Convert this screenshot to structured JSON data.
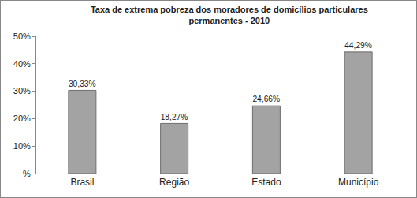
{
  "chart_data": {
    "type": "bar",
    "title": "Taxa de extrema pobreza dos moradores de domicílios particulares permanentes - 2010",
    "categories": [
      "Brasil",
      "Região",
      "Estado",
      "Município"
    ],
    "values": [
      30.33,
      18.27,
      24.66,
      44.29
    ],
    "value_labels": [
      "30,33%",
      "18,27%",
      "24,66%",
      "44,29%"
    ],
    "data_labels": true,
    "color": "#a3a3a3",
    "ylim": [
      0,
      50
    ],
    "yticks": [
      {
        "value": 0,
        "label": "%"
      },
      {
        "value": 10,
        "label": "10%"
      },
      {
        "value": 20,
        "label": "20%"
      },
      {
        "value": 30,
        "label": "30%"
      },
      {
        "value": 40,
        "label": "40%"
      },
      {
        "value": 50,
        "label": "50%"
      }
    ],
    "grid": false
  }
}
